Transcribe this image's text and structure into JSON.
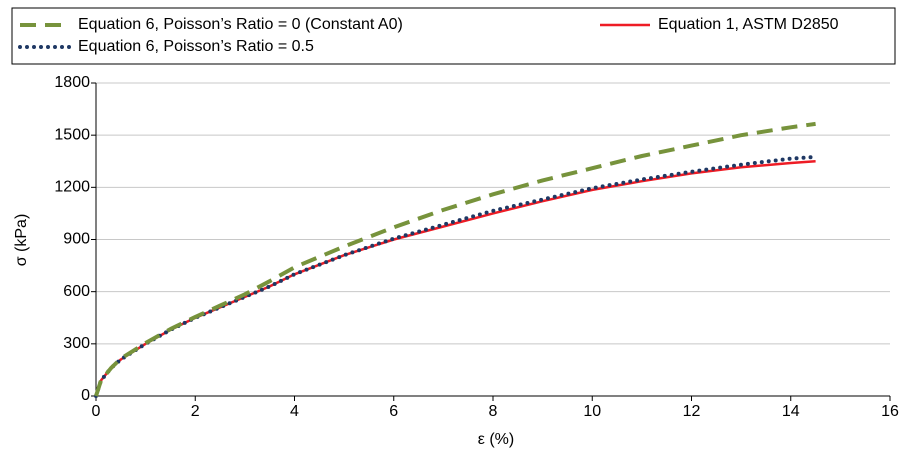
{
  "chart_data": {
    "type": "line",
    "xlabel": "ε (%)",
    "ylabel": "σ (kPa)",
    "x": [
      0,
      0.1,
      0.3,
      0.5,
      1,
      1.5,
      2,
      2.5,
      3,
      3.5,
      4,
      5,
      6,
      7,
      8,
      9,
      10,
      11,
      12,
      13,
      14,
      14.5
    ],
    "series": [
      {
        "name": "Equation 6, Poisson’s Ratio = 0 (Constant A0)",
        "color": "#77933c",
        "style": "dashed",
        "values": [
          0,
          90,
          160,
          215,
          305,
          385,
          455,
          520,
          585,
          660,
          740,
          860,
          970,
          1070,
          1160,
          1240,
          1310,
          1380,
          1440,
          1500,
          1545,
          1565
        ]
      },
      {
        "name": "Equation 1, ASTM D2850",
        "color": "#ee1c25",
        "style": "solid",
        "values": [
          0,
          90,
          160,
          210,
          300,
          380,
          450,
          510,
          570,
          630,
          700,
          810,
          900,
          975,
          1050,
          1120,
          1185,
          1235,
          1280,
          1315,
          1340,
          1350
        ]
      },
      {
        "name": "Equation 6, Poisson’s Ratio = 0.5",
        "color": "#1f3864",
        "style": "dotted",
        "values": [
          0,
          90,
          160,
          210,
          300,
          380,
          450,
          510,
          570,
          630,
          700,
          810,
          905,
          985,
          1065,
          1130,
          1195,
          1245,
          1290,
          1330,
          1365,
          1375
        ]
      }
    ],
    "xlim": [
      0,
      16
    ],
    "xticks": [
      0,
      2,
      4,
      6,
      8,
      10,
      12,
      14,
      16
    ],
    "ylim": [
      0,
      1800
    ],
    "yticks": [
      0,
      300,
      600,
      900,
      1200,
      1500,
      1800
    ],
    "grid": true,
    "legend": "top"
  }
}
